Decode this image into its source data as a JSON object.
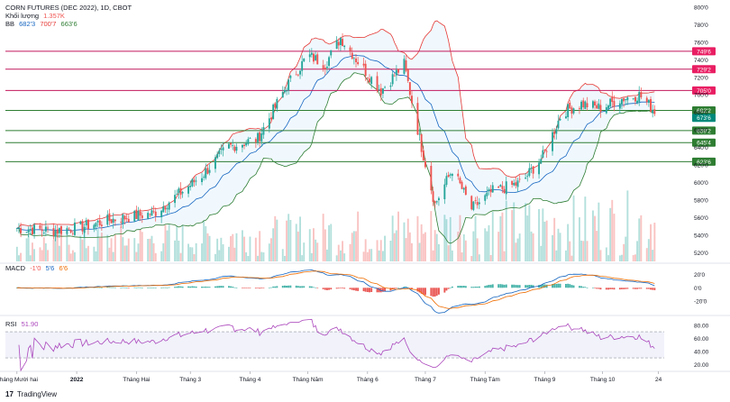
{
  "header": {
    "title": "CORN FUTURES (DEC 2022), 1D, CBOT",
    "volume_label": "Khối lượng",
    "volume_value": "1.357K",
    "bb_label": "BB",
    "bb_values": [
      "682'3",
      "700'7",
      "663'6"
    ]
  },
  "macd": {
    "label": "MACD",
    "values": [
      "-1'0",
      "5'6",
      "6'6"
    ]
  },
  "rsi": {
    "label": "RSI",
    "value": "51.90"
  },
  "brand": {
    "logo": "17",
    "text": "TradingView"
  },
  "colors": {
    "up": "#26a69a",
    "down": "#ef5350",
    "bb_upper": "#e53935",
    "bb_lower": "#2e7d32",
    "bb_basis": "#1565c0",
    "bb_fill": "#e3f2fd",
    "resistance": "#c2185b",
    "support": "#2e7d32",
    "rsi_line": "#ab47bc",
    "rsi_band": "#e8eaf6"
  },
  "chart_data": [
    {
      "type": "candlestick",
      "title": "CORN FUTURES (DEC 2022), 1D, CBOT",
      "x_tick_labels": [
        "Tháng Mười hai",
        "2022",
        "Tháng Hai",
        "Tháng 3",
        "Tháng 4",
        "Tháng Năm",
        "Tháng 6",
        "Tháng 7",
        "Tháng Tám",
        "Tháng 9",
        "Tháng 10",
        "24"
      ],
      "y_tick_labels": [
        "800'0",
        "780'0",
        "760'0",
        "740'0",
        "720'0",
        "700'0",
        "680'0",
        "660'0",
        "640'0",
        "620'0",
        "600'0",
        "580'0",
        "560'0",
        "540'0",
        "520'0"
      ],
      "ylim": [
        510,
        802
      ],
      "horizontal_levels": [
        {
          "label": "749'6",
          "value": 749.75,
          "kind": "resistance"
        },
        {
          "label": "729'2",
          "value": 729.25,
          "kind": "resistance"
        },
        {
          "label": "705'0",
          "value": 705.0,
          "kind": "resistance"
        },
        {
          "label": "682'2",
          "value": 682.25,
          "kind": "support"
        },
        {
          "label": "659'2",
          "value": 659.25,
          "kind": "support"
        },
        {
          "label": "645'4",
          "value": 645.5,
          "kind": "support"
        },
        {
          "label": "623'6",
          "value": 623.75,
          "kind": "support"
        },
        {
          "label": "673'6",
          "value": 673.75,
          "kind": "price"
        }
      ],
      "close_key_points": [
        {
          "date": "2021-12-01",
          "close": 548
        },
        {
          "date": "2021-12-20",
          "close": 545
        },
        {
          "date": "2022-01-03",
          "close": 549
        },
        {
          "date": "2022-01-20",
          "close": 558
        },
        {
          "date": "2022-02-10",
          "close": 565
        },
        {
          "date": "2022-02-25",
          "close": 590
        },
        {
          "date": "2022-03-08",
          "close": 610
        },
        {
          "date": "2022-03-20",
          "close": 640
        },
        {
          "date": "2022-04-05",
          "close": 650
        },
        {
          "date": "2022-04-20",
          "close": 710
        },
        {
          "date": "2022-05-01",
          "close": 745
        },
        {
          "date": "2022-05-10",
          "close": 735
        },
        {
          "date": "2022-05-18",
          "close": 765
        },
        {
          "date": "2022-05-28",
          "close": 735
        },
        {
          "date": "2022-06-08",
          "close": 705
        },
        {
          "date": "2022-06-20",
          "close": 735
        },
        {
          "date": "2022-06-28",
          "close": 650
        },
        {
          "date": "2022-07-06",
          "close": 575
        },
        {
          "date": "2022-07-15",
          "close": 615
        },
        {
          "date": "2022-07-25",
          "close": 570
        },
        {
          "date": "2022-08-05",
          "close": 590
        },
        {
          "date": "2022-08-20",
          "close": 600
        },
        {
          "date": "2022-08-31",
          "close": 630
        },
        {
          "date": "2022-09-10",
          "close": 680
        },
        {
          "date": "2022-09-20",
          "close": 690
        },
        {
          "date": "2022-09-30",
          "close": 685
        },
        {
          "date": "2022-10-10",
          "close": 695
        },
        {
          "date": "2022-10-20",
          "close": 700
        },
        {
          "date": "2022-10-28",
          "close": 682
        }
      ]
    },
    {
      "type": "bar",
      "title": "MACD",
      "y_tick_labels": [
        "20'0",
        "0'0",
        "-20'0"
      ],
      "ylim": [
        -32,
        30
      ]
    },
    {
      "type": "line",
      "title": "RSI",
      "y_tick_labels": [
        "80.00",
        "60.00",
        "40.00",
        "20.00"
      ],
      "ylim": [
        15,
        88
      ],
      "bands": [
        70,
        30
      ],
      "last_value": 51.9
    }
  ]
}
